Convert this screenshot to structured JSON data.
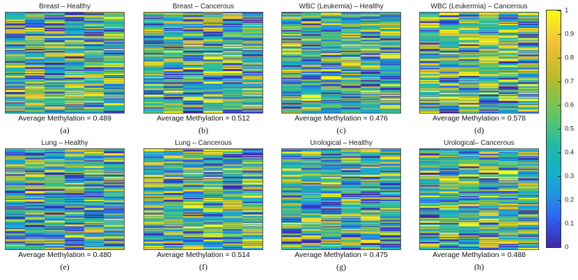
{
  "chart_data": [
    {
      "type": "heatmap",
      "title": "Breast – Healthy",
      "average_label": "Average Methylation = 0.489",
      "average": 0.489,
      "label": "(a)"
    },
    {
      "type": "heatmap",
      "title": "Breast – Cancerous",
      "average_label": "Average Methylation = 0.512",
      "average": 0.512,
      "label": "(b)"
    },
    {
      "type": "heatmap",
      "title": "WBC (Leukemia) – Healthy",
      "average_label": "Average Methylation = 0.476",
      "average": 0.476,
      "label": "(c)"
    },
    {
      "type": "heatmap",
      "title": "WBC (Leukermia) – Cancerous",
      "average_label": "Average Methylation = 0.578",
      "average": 0.578,
      "label": "(d)"
    },
    {
      "type": "heatmap",
      "title": "Lung – Healthy",
      "average_label": "Average Methylation = 0.480",
      "average": 0.48,
      "label": "(e)"
    },
    {
      "type": "heatmap",
      "title": "Lung – Cancerous",
      "average_label": "Average Methylation = 0.514",
      "average": 0.514,
      "label": "(f)"
    },
    {
      "type": "heatmap",
      "title": "Urological – Healthy",
      "average_label": "Average Methylation = 0.475",
      "average": 0.475,
      "label": "(g)"
    },
    {
      "type": "heatmap",
      "title": "Urological– Cancerous",
      "average_label": "Average Methylation = 0.488",
      "average": 0.488,
      "label": "(h)"
    }
  ],
  "colorbar": {
    "ticks": [
      "0",
      "0.1",
      "0.2",
      "0.3",
      "0.4",
      "0.5",
      "0.6",
      "0.7",
      "0.8",
      "0.9",
      "1"
    ],
    "range": [
      0,
      1
    ],
    "colormap": [
      "#3e26a8",
      "#2f60f3",
      "#2194e0",
      "#13b0c9",
      "#24bca1",
      "#64c565",
      "#bbbb2a",
      "#f2c036",
      "#f9fb15"
    ]
  }
}
